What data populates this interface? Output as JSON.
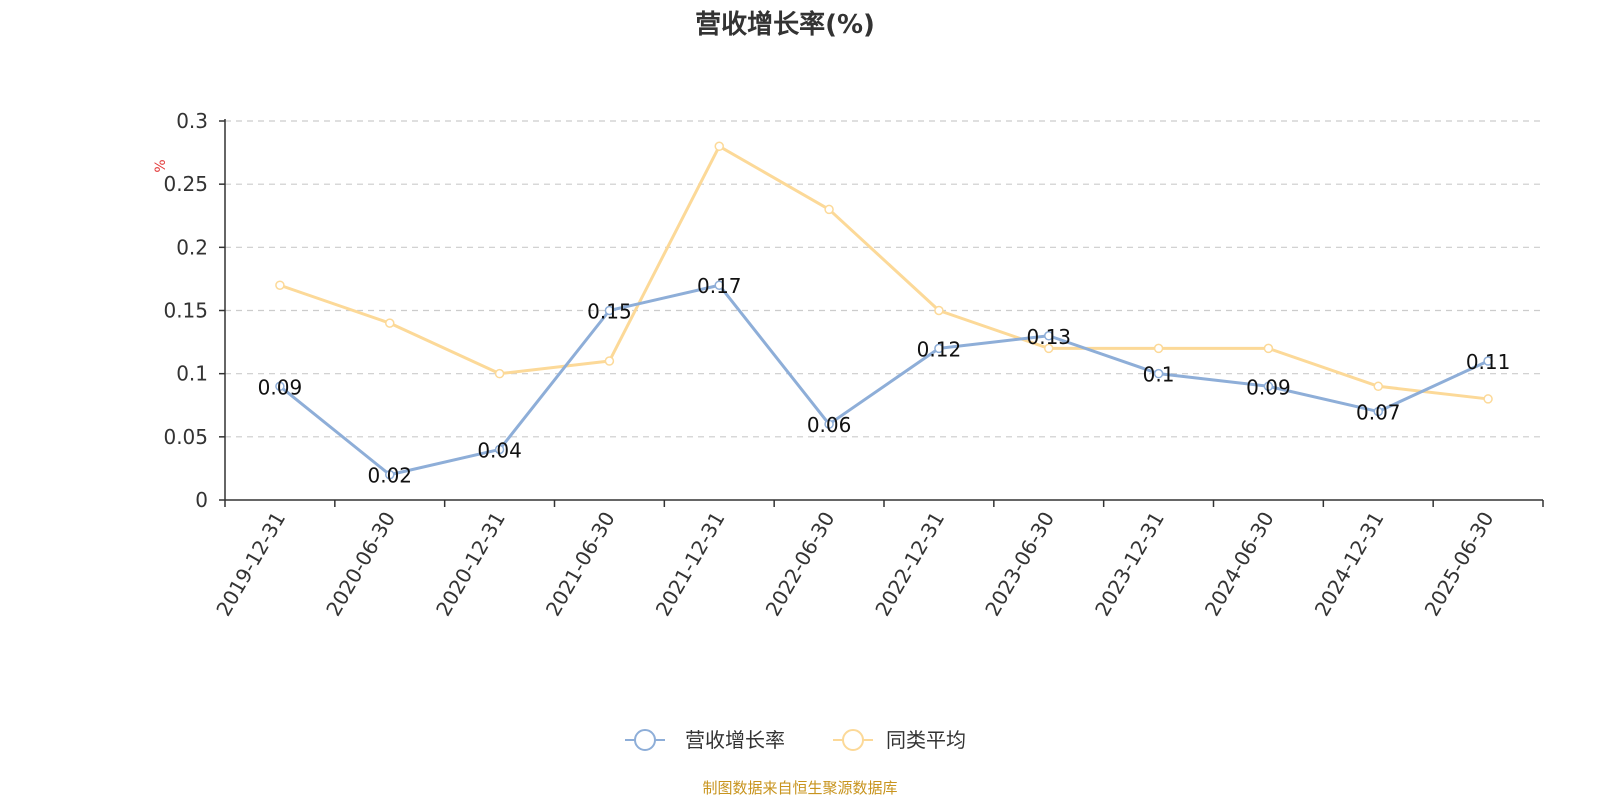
{
  "chart_data": {
    "type": "line",
    "title": "营收增长率(%)",
    "unit_label": "%",
    "categories": [
      "2019-12-31",
      "2020-06-30",
      "2020-12-31",
      "2021-06-30",
      "2021-12-31",
      "2022-06-30",
      "2022-12-31",
      "2023-06-30",
      "2023-12-31",
      "2024-06-30",
      "2024-12-31",
      "2025-06-30"
    ],
    "series": [
      {
        "name": "营收增长率",
        "color": "#8eaed8",
        "show_labels": true,
        "values": [
          0.09,
          0.02,
          0.04,
          0.15,
          0.17,
          0.06,
          0.12,
          0.13,
          0.1,
          0.09,
          0.07,
          0.11
        ]
      },
      {
        "name": "同类平均",
        "color": "#fcd998",
        "show_labels": false,
        "values": [
          0.17,
          0.14,
          0.1,
          0.11,
          0.28,
          0.23,
          0.15,
          0.12,
          0.12,
          0.12,
          0.09,
          0.08
        ]
      }
    ],
    "yticks": [
      "0",
      "0.05",
      "0.1",
      "0.15",
      "0.2",
      "0.25",
      "0.3"
    ],
    "ylim": [
      0,
      0.3
    ],
    "grid": true,
    "legend_position": "bottom-center"
  },
  "source_text": "制图数据来自恒生聚源数据库"
}
